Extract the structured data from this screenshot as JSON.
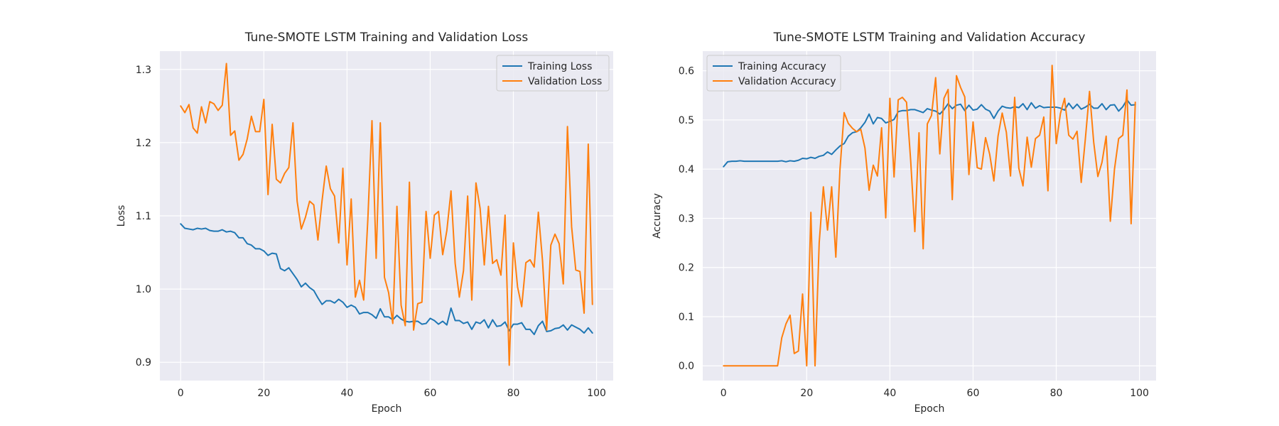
{
  "chart_data": [
    {
      "type": "line",
      "title": "Tune-SMOTE LSTM Training and Validation Loss",
      "xlabel": "Epoch",
      "ylabel": "Loss",
      "xlim": [
        -5,
        104
      ],
      "ylim": [
        0.875,
        1.325
      ],
      "xticks": [
        0,
        20,
        40,
        60,
        80,
        100
      ],
      "yticks": [
        0.9,
        1.0,
        1.1,
        1.2,
        1.3
      ],
      "ytick_labels": [
        "0.9",
        "1.0",
        "1.1",
        "1.2",
        "1.3"
      ],
      "grid": true,
      "legend": "upper-right",
      "series": [
        {
          "name": "Training Loss",
          "color": "#1f77b4",
          "values": [
            1.089,
            1.083,
            1.082,
            1.081,
            1.083,
            1.082,
            1.083,
            1.08,
            1.079,
            1.079,
            1.081,
            1.078,
            1.079,
            1.077,
            1.07,
            1.07,
            1.062,
            1.06,
            1.055,
            1.055,
            1.052,
            1.046,
            1.049,
            1.048,
            1.028,
            1.025,
            1.029,
            1.021,
            1.013,
            1.003,
            1.008,
            1.002,
            0.998,
            0.988,
            0.979,
            0.984,
            0.984,
            0.981,
            0.986,
            0.982,
            0.975,
            0.978,
            0.975,
            0.966,
            0.968,
            0.968,
            0.965,
            0.96,
            0.973,
            0.962,
            0.962,
            0.958,
            0.964,
            0.959,
            0.956,
            0.955,
            0.956,
            0.956,
            0.952,
            0.953,
            0.96,
            0.957,
            0.952,
            0.956,
            0.951,
            0.974,
            0.957,
            0.957,
            0.953,
            0.955,
            0.945,
            0.955,
            0.953,
            0.958,
            0.947,
            0.958,
            0.949,
            0.95,
            0.955,
            0.943,
            0.952,
            0.952,
            0.954,
            0.945,
            0.945,
            0.938,
            0.95,
            0.956,
            0.942,
            0.943,
            0.946,
            0.947,
            0.951,
            0.944,
            0.951,
            0.948,
            0.945,
            0.94,
            0.947,
            0.94
          ]
        },
        {
          "name": "Validation Loss",
          "color": "#ff7f0e",
          "values": [
            1.25,
            1.241,
            1.252,
            1.22,
            1.213,
            1.249,
            1.227,
            1.256,
            1.253,
            1.244,
            1.251,
            1.308,
            1.21,
            1.216,
            1.176,
            1.184,
            1.205,
            1.236,
            1.215,
            1.215,
            1.259,
            1.129,
            1.225,
            1.15,
            1.145,
            1.158,
            1.166,
            1.227,
            1.12,
            1.082,
            1.098,
            1.12,
            1.115,
            1.067,
            1.121,
            1.168,
            1.137,
            1.127,
            1.063,
            1.165,
            1.033,
            1.123,
            0.989,
            1.012,
            0.985,
            1.095,
            1.23,
            1.042,
            1.227,
            1.016,
            0.995,
            0.953,
            1.113,
            0.978,
            0.95,
            1.146,
            0.944,
            0.98,
            0.982,
            1.106,
            1.042,
            1.101,
            1.106,
            1.047,
            1.08,
            1.134,
            1.035,
            0.989,
            1.025,
            1.127,
            0.985,
            1.145,
            1.11,
            1.033,
            1.113,
            1.035,
            1.04,
            1.019,
            1.101,
            0.896,
            1.063,
            1.003,
            0.976,
            1.036,
            1.04,
            1.03,
            1.105,
            1.039,
            0.944,
            1.06,
            1.075,
            1.062,
            1.007,
            1.222,
            1.085,
            1.026,
            1.024,
            0.967,
            1.198,
            0.979
          ]
        }
      ]
    },
    {
      "type": "line",
      "title": "Tune-SMOTE LSTM Training and Validation Accuracy",
      "xlabel": "Epoch",
      "ylabel": "Accuracy",
      "xlim": [
        -5,
        104
      ],
      "ylim": [
        -0.03,
        0.64
      ],
      "xticks": [
        0,
        20,
        40,
        60,
        80,
        100
      ],
      "yticks": [
        0.0,
        0.1,
        0.2,
        0.3,
        0.4,
        0.5,
        0.6
      ],
      "ytick_labels": [
        "0.0",
        "0.1",
        "0.2",
        "0.3",
        "0.4",
        "0.5",
        "0.6"
      ],
      "grid": true,
      "legend": "upper-left",
      "series": [
        {
          "name": "Training Accuracy",
          "color": "#1f77b4",
          "values": [
            0.405,
            0.415,
            0.416,
            0.416,
            0.417,
            0.416,
            0.416,
            0.416,
            0.416,
            0.416,
            0.416,
            0.416,
            0.416,
            0.416,
            0.417,
            0.415,
            0.417,
            0.416,
            0.418,
            0.422,
            0.421,
            0.424,
            0.422,
            0.426,
            0.428,
            0.435,
            0.43,
            0.439,
            0.447,
            0.452,
            0.467,
            0.474,
            0.476,
            0.484,
            0.495,
            0.512,
            0.492,
            0.505,
            0.503,
            0.494,
            0.497,
            0.501,
            0.517,
            0.519,
            0.519,
            0.521,
            0.521,
            0.518,
            0.515,
            0.523,
            0.52,
            0.518,
            0.512,
            0.521,
            0.533,
            0.523,
            0.53,
            0.532,
            0.519,
            0.53,
            0.52,
            0.522,
            0.531,
            0.522,
            0.518,
            0.503,
            0.518,
            0.528,
            0.525,
            0.524,
            0.527,
            0.525,
            0.533,
            0.521,
            0.535,
            0.524,
            0.529,
            0.525,
            0.526,
            0.526,
            0.526,
            0.524,
            0.52,
            0.534,
            0.523,
            0.532,
            0.522,
            0.526,
            0.532,
            0.524,
            0.524,
            0.533,
            0.521,
            0.53,
            0.531,
            0.518,
            0.527,
            0.541,
            0.53,
            0.531
          ]
        },
        {
          "name": "Validation Accuracy",
          "color": "#ff7f0e",
          "values": [
            0.0,
            0.0,
            0.0,
            0.0,
            0.0,
            0.0,
            0.0,
            0.0,
            0.0,
            0.0,
            0.0,
            0.0,
            0.0,
            0.0,
            0.057,
            0.085,
            0.103,
            0.025,
            0.03,
            0.146,
            0.0,
            0.312,
            0.0,
            0.25,
            0.364,
            0.276,
            0.364,
            0.221,
            0.4,
            0.515,
            0.493,
            0.483,
            0.476,
            0.481,
            0.443,
            0.357,
            0.408,
            0.386,
            0.484,
            0.301,
            0.544,
            0.384,
            0.541,
            0.546,
            0.536,
            0.417,
            0.273,
            0.474,
            0.238,
            0.492,
            0.509,
            0.586,
            0.431,
            0.544,
            0.562,
            0.338,
            0.59,
            0.566,
            0.547,
            0.389,
            0.496,
            0.403,
            0.4,
            0.464,
            0.43,
            0.376,
            0.467,
            0.514,
            0.475,
            0.386,
            0.546,
            0.402,
            0.366,
            0.465,
            0.404,
            0.462,
            0.469,
            0.506,
            0.356,
            0.611,
            0.452,
            0.513,
            0.544,
            0.469,
            0.461,
            0.477,
            0.373,
            0.462,
            0.558,
            0.455,
            0.385,
            0.414,
            0.467,
            0.294,
            0.4,
            0.462,
            0.469,
            0.561,
            0.289,
            0.536
          ]
        }
      ]
    }
  ]
}
